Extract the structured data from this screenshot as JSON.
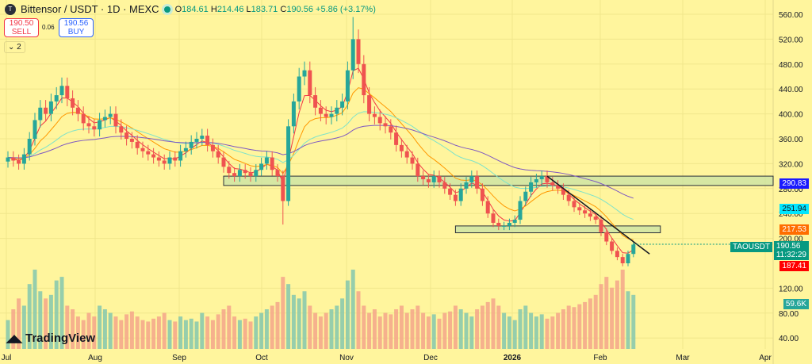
{
  "header": {
    "logo_letter": "T",
    "title": "Bittensor / USDT · 1D · MEXC",
    "o_label": "O",
    "o": "184.61",
    "h_label": "H",
    "h": "214.46",
    "l_label": "L",
    "l": "183.71",
    "c_label": "C",
    "c": "190.56",
    "change": "+5.86 (+3.17%)"
  },
  "trade": {
    "sell_price": "190.50",
    "sell_label": "SELL",
    "spread": "0.06",
    "buy_price": "190.56",
    "buy_label": "BUY"
  },
  "indicators_toggle": "2",
  "brand": "TradingView",
  "colors": {
    "up": "#26a69a",
    "down": "#ef5350",
    "bg": "#fff59d",
    "ma_red": "#f23645",
    "ma_orange": "#ff9800",
    "ma_cyan": "#7fe3c9",
    "ma_purple": "#7e57c2",
    "zone": "#c5e1a5"
  },
  "price_labels": {
    "ma_blue": "290.83",
    "ma_cyan": "251.94",
    "ma_orange": "217.53",
    "symbol": "TAOUSDT",
    "last": "190.56",
    "countdown": "11:32:29",
    "ma_red": "187.41",
    "volume": "59.6K"
  },
  "chart_data": {
    "type": "candlestick",
    "interval": "1D",
    "bar_step_days": 2,
    "y_ticks": [
      "560.00",
      "520.00",
      "480.00",
      "440.00",
      "400.00",
      "360.00",
      "320.00",
      "280.00",
      "240.00",
      "200.00",
      "120.00",
      "80.00",
      "40.00"
    ],
    "ylim": [
      30,
      570
    ],
    "x_ticks": [
      "Jul",
      "Aug",
      "Sep",
      "Oct",
      "Nov",
      "Dec",
      "2026",
      "Feb",
      "Mar",
      "Apr"
    ],
    "closes": [
      330,
      325,
      320,
      335,
      360,
      390,
      410,
      400,
      420,
      430,
      445,
      425,
      410,
      400,
      385,
      380,
      375,
      390,
      395,
      400,
      380,
      370,
      360,
      355,
      345,
      340,
      335,
      330,
      325,
      320,
      330,
      325,
      340,
      345,
      355,
      360,
      365,
      350,
      340,
      330,
      315,
      305,
      300,
      310,
      305,
      300,
      310,
      320,
      330,
      310,
      300,
      260,
      380,
      420,
      460,
      470,
      430,
      410,
      400,
      395,
      400,
      410,
      420,
      470,
      520,
      480,
      430,
      400,
      395,
      385,
      380,
      370,
      350,
      340,
      330,
      320,
      300,
      295,
      290,
      300,
      290,
      280,
      270,
      260,
      280,
      290,
      300,
      280,
      260,
      240,
      225,
      220,
      220,
      225,
      230,
      260,
      275,
      290,
      295,
      300,
      290,
      285,
      280,
      270,
      260,
      250,
      245,
      240,
      235,
      230,
      210,
      195,
      180,
      170,
      160,
      175,
      190
    ],
    "volumes": [
      40,
      55,
      70,
      60,
      90,
      110,
      80,
      70,
      75,
      95,
      100,
      60,
      55,
      45,
      40,
      50,
      45,
      60,
      55,
      50,
      45,
      40,
      48,
      52,
      45,
      40,
      38,
      42,
      45,
      50,
      40,
      38,
      45,
      40,
      42,
      38,
      50,
      45,
      40,
      48,
      55,
      60,
      45,
      40,
      42,
      38,
      45,
      50,
      55,
      60,
      65,
      100,
      90,
      75,
      70,
      80,
      60,
      50,
      45,
      50,
      55,
      60,
      70,
      95,
      110,
      80,
      60,
      50,
      55,
      45,
      50,
      48,
      55,
      60,
      50,
      55,
      60,
      50,
      45,
      48,
      42,
      50,
      52,
      60,
      55,
      50,
      45,
      55,
      60,
      65,
      70,
      60,
      50,
      45,
      40,
      55,
      60,
      50,
      45,
      48,
      42,
      45,
      50,
      55,
      60,
      58,
      62,
      65,
      70,
      75,
      90,
      100,
      85,
      95,
      110,
      80,
      75
    ],
    "zones": [
      {
        "from_bar": 40,
        "top": 300,
        "bottom": 285
      },
      {
        "from_bar": 83,
        "to_bar": 121,
        "top": 220,
        "bottom": 209
      }
    ],
    "trendline": {
      "from_bar": 100,
      "from_price": 300,
      "to_bar": 119,
      "to_price": 175
    }
  }
}
